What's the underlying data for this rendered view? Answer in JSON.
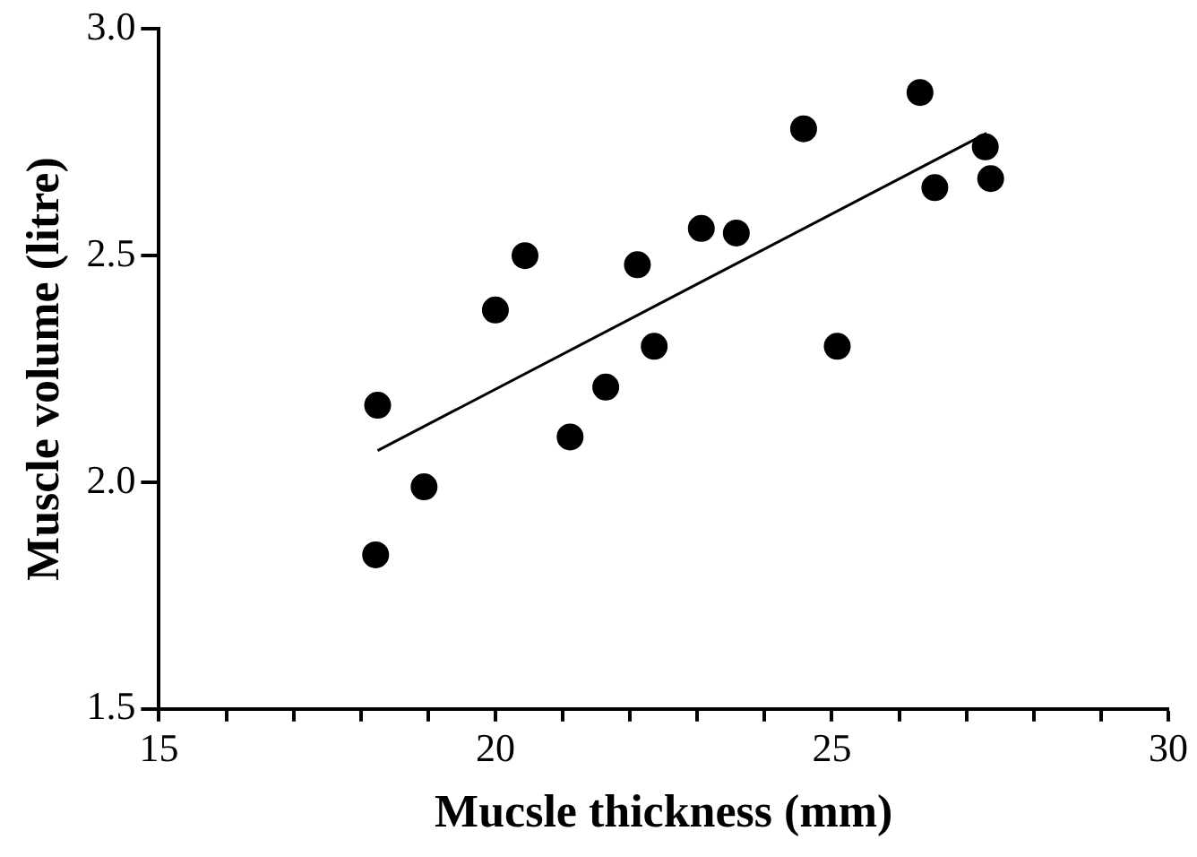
{
  "chart_data": {
    "type": "scatter",
    "xlabel": "Mucsle thickness (mm)",
    "ylabel": "Muscle volume (litre)",
    "xlim": [
      15,
      30
    ],
    "ylim": [
      1.5,
      3.0
    ],
    "xticks": [
      15,
      {
        "value": 16,
        "label": null
      },
      {
        "value": 17,
        "label": null
      },
      {
        "value": 18,
        "label": null
      },
      {
        "value": 19,
        "label": null
      },
      20,
      {
        "value": 21,
        "label": null
      },
      {
        "value": 22,
        "label": null
      },
      {
        "value": 23,
        "label": null
      },
      {
        "value": 24,
        "label": null
      },
      25,
      {
        "value": 26,
        "label": null
      },
      {
        "value": 27,
        "label": null
      },
      {
        "value": 28,
        "label": null
      },
      {
        "value": 29,
        "label": null
      },
      30
    ],
    "yticks": [
      1.5,
      {
        "value": 2,
        "label": "2.0"
      },
      2.5,
      {
        "value": 3,
        "label": "3.0"
      }
    ],
    "grid": false,
    "legend": false,
    "series": [
      {
        "marker": "circle",
        "color": "#000000",
        "x": [
          18.25,
          18.22,
          18.94,
          20.0,
          20.44,
          21.11,
          21.64,
          22.11,
          22.36,
          23.06,
          23.58,
          24.58,
          25.08,
          26.31,
          26.53,
          27.28,
          27.36
        ],
        "values": [
          2.17,
          1.84,
          1.99,
          2.38,
          2.5,
          2.1,
          2.21,
          2.48,
          2.3,
          2.56,
          2.55,
          2.78,
          2.3,
          2.86,
          2.65,
          2.74,
          2.67
        ]
      },
      {
        "type": "line",
        "marker": "none",
        "color": "#000000",
        "x": [
          18.25,
          27.3
        ],
        "values": [
          2.07,
          2.77
        ]
      }
    ]
  }
}
